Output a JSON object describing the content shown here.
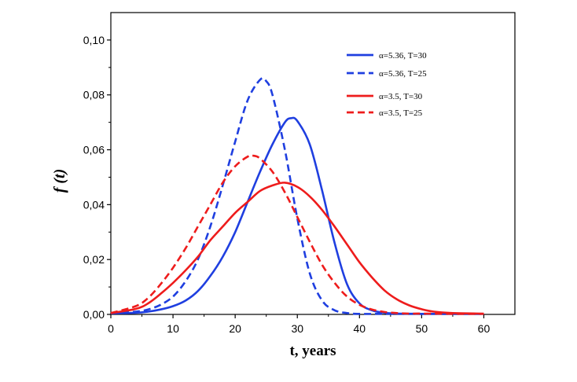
{
  "chart_data": {
    "type": "line",
    "xlabel": "t, years",
    "ylabel": "f (t)",
    "xlim": [
      0,
      65
    ],
    "ylim": [
      0,
      0.11
    ],
    "xticks": [
      0,
      10,
      20,
      30,
      40,
      50,
      60
    ],
    "xtick_labels": [
      "0",
      "10",
      "20",
      "30",
      "40",
      "50",
      "60"
    ],
    "yticks": [
      0,
      0.02,
      0.04,
      0.06,
      0.08,
      0.1
    ],
    "ytick_labels": [
      "0,00",
      "0,02",
      "0,04",
      "0,06",
      "0,08",
      "0,10"
    ],
    "grid": false,
    "legend_position": "top-right",
    "series": [
      {
        "name": "α=5.36,  T=30",
        "color": "#1f3fe0",
        "dash": "solid",
        "x": [
          0,
          4,
          6,
          8,
          10,
          12,
          14,
          16,
          18,
          20,
          22,
          24,
          26,
          28,
          29,
          30,
          32,
          34,
          36,
          38,
          40,
          42,
          44,
          46,
          50,
          55,
          60
        ],
        "y": [
          0.0004,
          0.0006,
          0.001,
          0.0018,
          0.003,
          0.005,
          0.0085,
          0.014,
          0.021,
          0.03,
          0.041,
          0.052,
          0.062,
          0.07,
          0.0715,
          0.0705,
          0.062,
          0.045,
          0.026,
          0.011,
          0.004,
          0.0015,
          0.0006,
          0.0003,
          0.0002,
          0.0002,
          0.0002
        ]
      },
      {
        "name": "α=5.36, T=25",
        "color": "#1f3fe0",
        "dash": "dashed",
        "x": [
          0,
          4,
          6,
          8,
          10,
          12,
          14,
          16,
          18,
          20,
          22,
          24,
          25,
          26,
          28,
          30,
          32,
          34,
          36,
          38,
          40,
          44,
          50,
          60
        ],
        "y": [
          0.0004,
          0.001,
          0.0018,
          0.0035,
          0.0065,
          0.012,
          0.02,
          0.032,
          0.047,
          0.063,
          0.078,
          0.0855,
          0.085,
          0.08,
          0.06,
          0.035,
          0.015,
          0.005,
          0.0015,
          0.0005,
          0.0002,
          0.0002,
          0.0002,
          0.0002
        ]
      },
      {
        "name": "α=3.5, T=30",
        "color": "#ee1c1c",
        "dash": "solid",
        "x": [
          0,
          4,
          6,
          8,
          10,
          12,
          14,
          16,
          18,
          20,
          22,
          24,
          26,
          28,
          30,
          32,
          34,
          36,
          38,
          40,
          42,
          44,
          46,
          48,
          50,
          52,
          55,
          60
        ],
        "y": [
          0.0005,
          0.002,
          0.004,
          0.0075,
          0.0115,
          0.016,
          0.021,
          0.027,
          0.032,
          0.037,
          0.041,
          0.045,
          0.047,
          0.048,
          0.0465,
          0.043,
          0.038,
          0.032,
          0.0255,
          0.019,
          0.0135,
          0.0088,
          0.0055,
          0.0033,
          0.0019,
          0.001,
          0.0005,
          0.0003
        ]
      },
      {
        "name": "α=3.5, T=25",
        "color": "#ee1c1c",
        "dash": "dashed",
        "x": [
          0,
          4,
          6,
          8,
          10,
          12,
          14,
          16,
          18,
          20,
          22,
          23,
          24,
          26,
          28,
          30,
          32,
          34,
          36,
          38,
          40,
          42,
          44,
          46,
          48,
          50,
          55,
          60
        ],
        "y": [
          0.0005,
          0.003,
          0.006,
          0.011,
          0.017,
          0.024,
          0.032,
          0.04,
          0.048,
          0.054,
          0.0575,
          0.0578,
          0.0568,
          0.052,
          0.0445,
          0.0355,
          0.0265,
          0.018,
          0.0115,
          0.0065,
          0.0035,
          0.0018,
          0.0009,
          0.0005,
          0.0003,
          0.0003,
          0.0002,
          0.0002
        ]
      }
    ]
  }
}
